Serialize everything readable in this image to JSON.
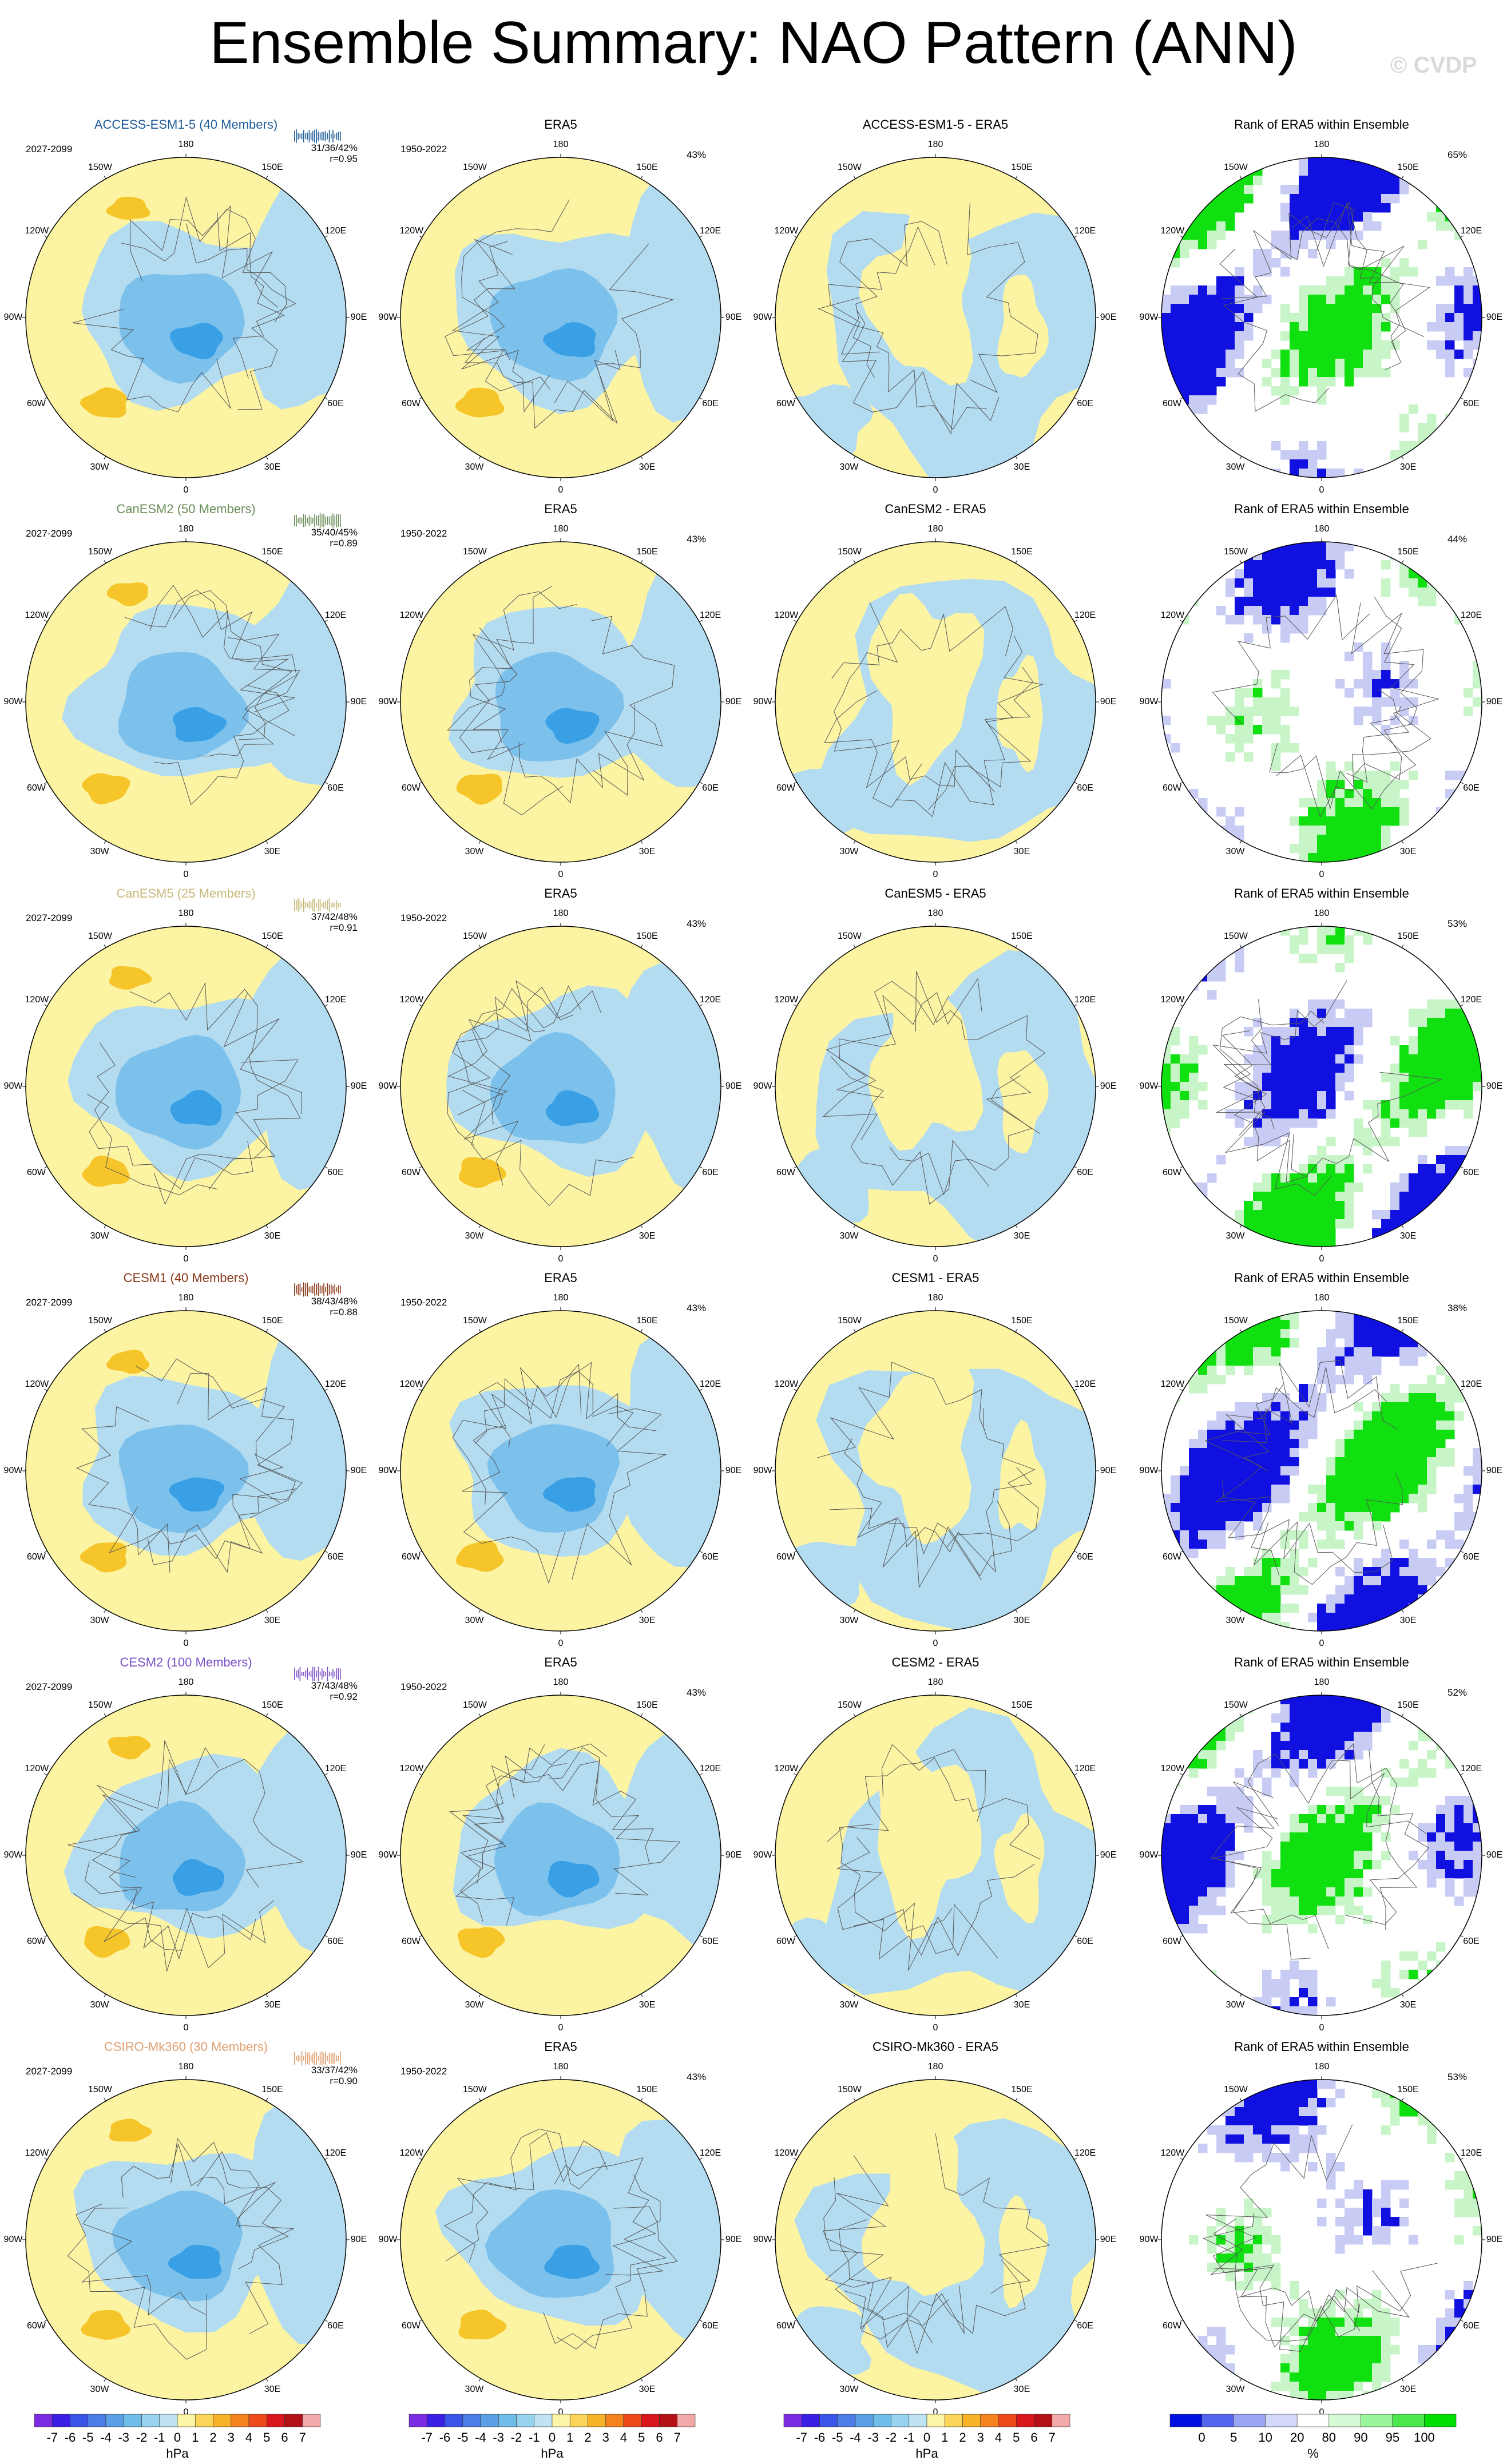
{
  "title": "Ensemble Summary: NAO Pattern (ANN)",
  "credit": "© CVDP",
  "column_titles": {
    "obs": "ERA5",
    "rank": "Rank of ERA5 within Ensemble"
  },
  "obs_period": "1950-2022",
  "obs_pct": "43%",
  "model_period": "2027-2099",
  "lon_labels": [
    "180",
    "150E",
    "120E",
    "90E",
    "60E",
    "30E",
    "0",
    "30W",
    "60W",
    "90W",
    "120W",
    "150W"
  ],
  "rows": [
    {
      "model_label": "ACCESS-ESM1-5 (40 Members)",
      "color": "#1f5c99",
      "stats_pct": "31/36/42%",
      "stats_r": "r=0.95",
      "diff_title": "ACCESS-ESM1-5 - ERA5",
      "rank_pct": "65%"
    },
    {
      "model_label": "CanESM2 (50 Members)",
      "color": "#6b8e5a",
      "stats_pct": "35/40/45%",
      "stats_r": "r=0.89",
      "diff_title": "CanESM2 - ERA5",
      "rank_pct": "44%"
    },
    {
      "model_label": "CanESM5 (25 Members)",
      "color": "#c7b97a",
      "stats_pct": "37/42/48%",
      "stats_r": "r=0.91",
      "diff_title": "CanESM5 - ERA5",
      "rank_pct": "53%"
    },
    {
      "model_label": "CESM1 (40 Members)",
      "color": "#8b3a1a",
      "stats_pct": "38/43/48%",
      "stats_r": "r=0.88",
      "diff_title": "CESM1 - ERA5",
      "rank_pct": "38%"
    },
    {
      "model_label": "CESM2 (100 Members)",
      "color": "#7b52c7",
      "stats_pct": "37/43/48%",
      "stats_r": "r=0.92",
      "diff_title": "CESM2 - ERA5",
      "rank_pct": "52%"
    },
    {
      "model_label": "CSIRO-Mk360 (30 Members)",
      "color": "#e0a070",
      "stats_pct": "33/37/42%",
      "stats_r": "r=0.90",
      "diff_title": "CSIRO-Mk360 - ERA5",
      "rank_pct": "53%"
    }
  ],
  "colorbar_hpa": {
    "labels": [
      "-7",
      "-6",
      "-5",
      "-4",
      "-3",
      "-2",
      "-1",
      "0",
      "1",
      "2",
      "3",
      "4",
      "5",
      "6",
      "7"
    ],
    "unit": "hPa",
    "colors": [
      "#7b2be2",
      "#3a1ee6",
      "#3b55e8",
      "#4d7de6",
      "#5b9fe6",
      "#6fbde8",
      "#97d2ef",
      "#bfe3f2",
      "#fdf5a8",
      "#fbd45a",
      "#f7b22a",
      "#f5821f",
      "#ef4a1c",
      "#d8161c",
      "#b41018",
      "#f3a9a9"
    ]
  },
  "colorbar_rank": {
    "labels": [
      "0",
      "5",
      "10",
      "20",
      "80",
      "90",
      "95",
      "100"
    ],
    "unit": "%",
    "colors": [
      "#0010e0",
      "#5566ee",
      "#9aa5f4",
      "#d4d8fa",
      "#ffffff",
      "#d5fad5",
      "#9af59a",
      "#4de84d",
      "#00e000"
    ]
  },
  "palette": {
    "yellow": "#fcf4a3",
    "blue": "#b4dcf0",
    "mid_blue": "#7cc0ec",
    "dark_blue": "#3aa0e6",
    "core_blue": "#1e88e0",
    "orange": "#f6c52a",
    "rank_blue": "#1010e0",
    "rank_green": "#10e010",
    "rank_pale_blue": "#c8ccf5",
    "rank_pale_green": "#c8f5c8"
  }
}
